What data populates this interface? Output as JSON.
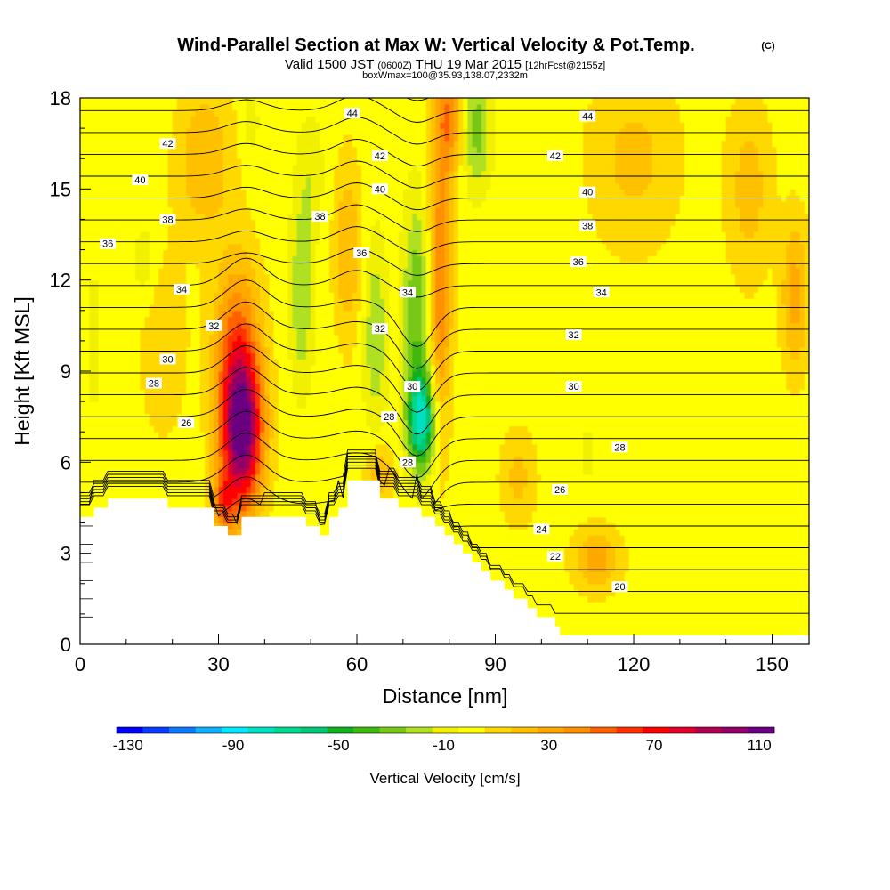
{
  "title": "Wind-Parallel Section at Max W: Vertical Velocity & Pot.Temp.",
  "title_mark": "(C)",
  "subtitle": {
    "part1": "Valid 1500 JST ",
    "part2": "(0600Z)",
    "part3": " THU 19 Mar 2015 ",
    "part4": "[12hrFcst@2155z]"
  },
  "subtitle2": "boxWmax=100@35.93,138.07,2332m",
  "chart_data": {
    "type": "heatmap",
    "xlabel": "Distance [nm]",
    "ylabel": "Height [Kft MSL]",
    "xlim": [
      0,
      158
    ],
    "ylim": [
      0,
      18
    ],
    "x_ticks": [
      0,
      30,
      60,
      90,
      120,
      150
    ],
    "y_ticks": [
      0,
      3,
      6,
      9,
      12,
      15,
      18
    ],
    "colorbar": {
      "label": "Vertical Velocity [cm/s]",
      "tick_labels": [
        "-130",
        "-90",
        "-50",
        "-10",
        "30",
        "70",
        "110"
      ],
      "tick_values": [
        -130,
        -90,
        -50,
        -10,
        30,
        70,
        110
      ],
      "levels": [
        -130,
        -120,
        -110,
        -100,
        -90,
        -80,
        -70,
        -60,
        -50,
        -40,
        -30,
        -20,
        -10,
        0,
        10,
        20,
        30,
        40,
        50,
        60,
        70,
        80,
        90,
        100,
        110,
        120
      ],
      "colors": [
        "#0000ff",
        "#0a3cff",
        "#0f78ff",
        "#10b0ff",
        "#00e8ff",
        "#00e0c0",
        "#00d890",
        "#00c878",
        "#10b020",
        "#40b810",
        "#78c818",
        "#b0e020",
        "#f0f000",
        "#ffff00",
        "#ffd800",
        "#ffc000",
        "#ffa800",
        "#ff9000",
        "#ff6000",
        "#ff3000",
        "#ff0000",
        "#e0002a",
        "#b00050",
        "#900068",
        "#6a0080"
      ]
    },
    "background_value": 5,
    "vertical_velocity_features": [
      {
        "x": 35,
        "y": 7.0,
        "peak": 110,
        "width": 4.5,
        "height": 2.6
      },
      {
        "x": 34,
        "y": 10.0,
        "peak": 40,
        "width": 5,
        "height": 3.0
      },
      {
        "x": 31,
        "y": 4.6,
        "peak": 40,
        "width": 2.5,
        "height": 1.0
      },
      {
        "x": 74,
        "y": 7.4,
        "peak": -75,
        "width": 3,
        "height": 1.6
      },
      {
        "x": 73,
        "y": 11.0,
        "peak": -35,
        "width": 3,
        "height": 3.5
      },
      {
        "x": 86,
        "y": 17.0,
        "peak": -30,
        "width": 3,
        "height": 2.0
      },
      {
        "x": 64,
        "y": 10.2,
        "peak": -25,
        "width": 2.5,
        "height": 3.0
      },
      {
        "x": 48,
        "y": 11.5,
        "peak": -25,
        "width": 2.5,
        "height": 3.0
      },
      {
        "x": 50,
        "y": 15.5,
        "peak": -12,
        "width": 3,
        "height": 2.0
      },
      {
        "x": 14,
        "y": 12.5,
        "peak": -12,
        "width": 3,
        "height": 1.5
      },
      {
        "x": 3,
        "y": 10.0,
        "peak": -8,
        "width": 2,
        "height": 3.0
      },
      {
        "x": 110,
        "y": 6.2,
        "peak": -12,
        "width": 1.5,
        "height": 0.8
      },
      {
        "x": 37,
        "y": 17.2,
        "peak": -10,
        "width": 2,
        "height": 1.2
      },
      {
        "x": 78,
        "y": 12.0,
        "peak": 45,
        "width": 2.5,
        "height": 5.0
      },
      {
        "x": 80,
        "y": 17.5,
        "peak": 40,
        "width": 3,
        "height": 2.0
      },
      {
        "x": 58,
        "y": 13.0,
        "peak": 25,
        "width": 3,
        "height": 3.0
      },
      {
        "x": 65,
        "y": 5.6,
        "peak": 25,
        "width": 3,
        "height": 1.0
      },
      {
        "x": 112,
        "y": 2.8,
        "peak": 30,
        "width": 5,
        "height": 1.0
      },
      {
        "x": 27,
        "y": 16.0,
        "peak": 25,
        "width": 6,
        "height": 2.5
      },
      {
        "x": 155,
        "y": 11.5,
        "peak": 30,
        "width": 3,
        "height": 2.5
      },
      {
        "x": 145,
        "y": 15.0,
        "peak": 20,
        "width": 5,
        "height": 3.0
      },
      {
        "x": 120,
        "y": 16.0,
        "peak": 18,
        "width": 10,
        "height": 3.0
      },
      {
        "x": 95,
        "y": 5.5,
        "peak": 18,
        "width": 4,
        "height": 1.5
      },
      {
        "x": 135,
        "y": 8.5,
        "peak": -3,
        "width": 12,
        "height": 1.5
      },
      {
        "x": 18,
        "y": 10.0,
        "peak": 15,
        "width": 5,
        "height": 3.0
      }
    ],
    "terrain": [
      [
        0,
        4.2
      ],
      [
        3,
        4.2
      ],
      [
        3,
        4.5
      ],
      [
        6,
        4.5
      ],
      [
        6,
        4.8
      ],
      [
        19,
        4.8
      ],
      [
        19,
        4.5
      ],
      [
        29,
        4.5
      ],
      [
        29,
        3.9
      ],
      [
        32,
        3.9
      ],
      [
        32,
        3.6
      ],
      [
        35,
        3.6
      ],
      [
        35,
        4.2
      ],
      [
        49,
        4.2
      ],
      [
        49,
        3.9
      ],
      [
        52,
        3.9
      ],
      [
        52,
        3.6
      ],
      [
        54,
        3.6
      ],
      [
        54,
        4.2
      ],
      [
        56,
        4.2
      ],
      [
        56,
        4.5
      ],
      [
        58,
        4.5
      ],
      [
        58,
        5.4
      ],
      [
        65,
        5.4
      ],
      [
        65,
        4.8
      ],
      [
        69,
        4.8
      ],
      [
        69,
        4.5
      ],
      [
        74,
        4.5
      ],
      [
        74,
        4.2
      ],
      [
        77,
        4.2
      ],
      [
        77,
        3.9
      ],
      [
        79,
        3.9
      ],
      [
        79,
        3.6
      ],
      [
        81,
        3.6
      ],
      [
        81,
        3.3
      ],
      [
        83,
        3.3
      ],
      [
        83,
        3.0
      ],
      [
        85,
        3.0
      ],
      [
        85,
        2.7
      ],
      [
        87,
        2.7
      ],
      [
        87,
        2.4
      ],
      [
        89,
        2.4
      ],
      [
        89,
        2.1
      ],
      [
        92,
        2.1
      ],
      [
        92,
        1.8
      ],
      [
        94,
        1.8
      ],
      [
        94,
        1.5
      ],
      [
        97,
        1.5
      ],
      [
        97,
        1.2
      ],
      [
        99,
        1.2
      ],
      [
        99,
        0.9
      ],
      [
        103,
        0.9
      ],
      [
        103,
        0.6
      ],
      [
        104,
        0.6
      ],
      [
        104,
        0.3
      ],
      [
        158,
        0.3
      ]
    ],
    "theta_contours": [
      20,
      21,
      22,
      23,
      24,
      25,
      26,
      27,
      28,
      29,
      30,
      31,
      32,
      33,
      34,
      35,
      36,
      37,
      38,
      39,
      40,
      41,
      42,
      43,
      44
    ],
    "theta_labels": [
      {
        "text": "44",
        "x": 59,
        "y": 17.5
      },
      {
        "text": "44",
        "x": 110,
        "y": 17.4
      },
      {
        "text": "42",
        "x": 19,
        "y": 16.5
      },
      {
        "text": "42",
        "x": 65,
        "y": 16.1
      },
      {
        "text": "42",
        "x": 103,
        "y": 16.1
      },
      {
        "text": "40",
        "x": 13,
        "y": 15.3
      },
      {
        "text": "40",
        "x": 65,
        "y": 15.0
      },
      {
        "text": "40",
        "x": 110,
        "y": 14.9
      },
      {
        "text": "38",
        "x": 19,
        "y": 14.0
      },
      {
        "text": "38",
        "x": 52,
        "y": 14.1
      },
      {
        "text": "38",
        "x": 110,
        "y": 13.8
      },
      {
        "text": "36",
        "x": 6,
        "y": 13.2
      },
      {
        "text": "36",
        "x": 61,
        "y": 12.9
      },
      {
        "text": "36",
        "x": 108,
        "y": 12.6
      },
      {
        "text": "34",
        "x": 22,
        "y": 11.7
      },
      {
        "text": "34",
        "x": 71,
        "y": 11.6
      },
      {
        "text": "34",
        "x": 113,
        "y": 11.6
      },
      {
        "text": "32",
        "x": 29,
        "y": 10.5
      },
      {
        "text": "32",
        "x": 65,
        "y": 10.4
      },
      {
        "text": "32",
        "x": 107,
        "y": 10.2
      },
      {
        "text": "30",
        "x": 19,
        "y": 9.4
      },
      {
        "text": "30",
        "x": 72,
        "y": 8.5
      },
      {
        "text": "30",
        "x": 107,
        "y": 8.5
      },
      {
        "text": "28",
        "x": 16,
        "y": 8.6
      },
      {
        "text": "28",
        "x": 67,
        "y": 7.5
      },
      {
        "text": "28",
        "x": 117,
        "y": 6.5
      },
      {
        "text": "28",
        "x": 71,
        "y": 6.0
      },
      {
        "text": "26",
        "x": 23,
        "y": 7.3
      },
      {
        "text": "26",
        "x": 104,
        "y": 5.1
      },
      {
        "text": "24",
        "x": 100,
        "y": 3.8
      },
      {
        "text": "22",
        "x": 103,
        "y": 2.9
      },
      {
        "text": "20",
        "x": 117,
        "y": 1.9
      }
    ]
  }
}
